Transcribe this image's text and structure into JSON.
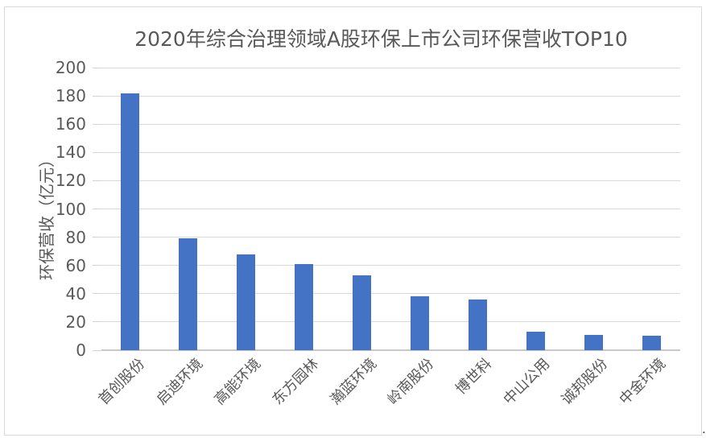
{
  "page": {
    "trailing_mark": "."
  },
  "chart_data": {
    "type": "bar",
    "title": "2020年综合治理领域A股环保上市公司环保营收TOP10",
    "xlabel": "",
    "ylabel": "环保营收（亿元）",
    "categories": [
      "首创股份",
      "启迪环境",
      "高能环境",
      "东方园林",
      "瀚蓝环境",
      "岭南股份",
      "博世科",
      "中山公用",
      "诚邦股份",
      "中金环境"
    ],
    "values": [
      182,
      79,
      68,
      61,
      53,
      38,
      36,
      13,
      11,
      10
    ],
    "ylim": [
      0,
      200
    ],
    "ytick_step": 20,
    "grid": true,
    "legend": false,
    "colors": {
      "bar": "#4472C4",
      "gridline": "#D9D9D9",
      "axis_line": "#C9C9C9",
      "text": "#595959",
      "frame_border": "#D9D9D9"
    }
  }
}
